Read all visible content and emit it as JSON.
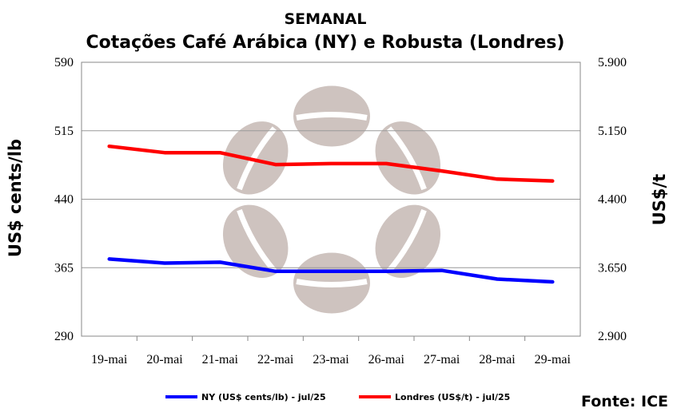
{
  "chart_data": {
    "type": "line",
    "title": "SEMANAL",
    "subtitle": "Cotações Café Arábica (NY) e Robusta (Londres)",
    "categories": [
      "19-mai",
      "20-mai",
      "21-mai",
      "22-mai",
      "23-mai",
      "26-mai",
      "27-mai",
      "28-mai",
      "29-mai"
    ],
    "y_left": {
      "label": "US$ cents/lb",
      "ylim": [
        290,
        590
      ],
      "ticks": [
        "290",
        "365",
        "440",
        "515",
        "590"
      ]
    },
    "y_right": {
      "label": "US$/t",
      "ylim": [
        2900,
        5900
      ],
      "ticks": [
        "2.900",
        "3.650",
        "4.400",
        "5.150",
        "5.900"
      ]
    },
    "series": [
      {
        "name": "NY (US$ cents/lb) - jul/25",
        "axis": "left",
        "color": "#0000ff",
        "values": [
          374.5,
          370.0,
          371.0,
          361.0,
          361.0,
          361.0,
          362.0,
          352.5,
          349.5
        ]
      },
      {
        "name": "Londres (US$/t) - jul/25",
        "axis": "right",
        "color": "#ff0000",
        "values": [
          4980,
          4910,
          4910,
          4780,
          4790,
          4790,
          4710,
          4620,
          4600
        ]
      }
    ],
    "grid": true,
    "legend_position": "bottom",
    "source": "Fonte: ICE"
  }
}
